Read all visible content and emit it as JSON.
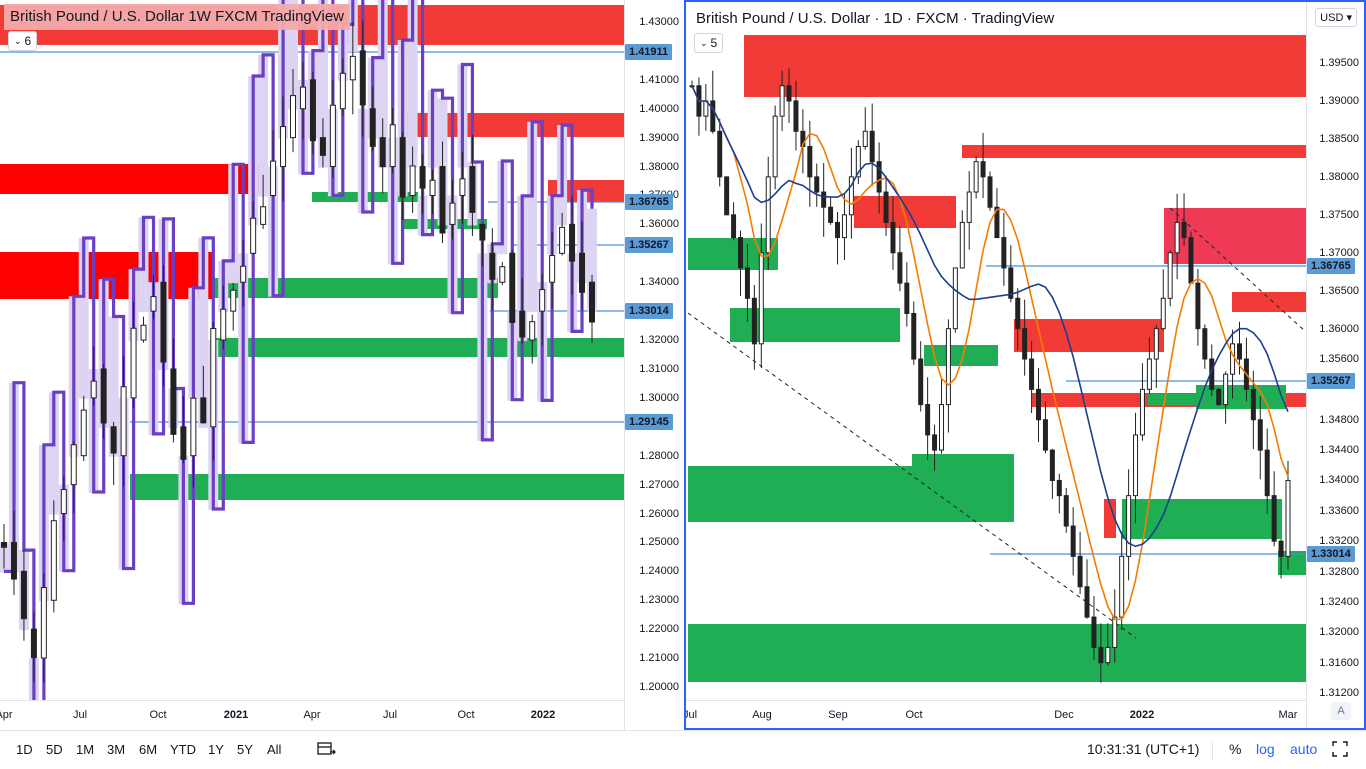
{
  "left": {
    "title": "British Pound / U.S. Dollar   1W   FXCM   TradingView",
    "legend_count": "6",
    "price_ticks": [
      "1.43000",
      "1.41000",
      "1.40000",
      "1.39000",
      "1.38000",
      "1.37000",
      "1.36000",
      "1.34000",
      "1.32000",
      "1.31000",
      "1.30000",
      "1.28000",
      "1.27000",
      "1.26000",
      "1.25000",
      "1.24000",
      "1.23000",
      "1.22000",
      "1.21000",
      "1.20000"
    ],
    "price_labels": [
      "1.41911",
      "1.36765",
      "1.35267",
      "1.33014",
      "1.29145"
    ],
    "time_labels": [
      "Apr",
      "Jul",
      "Oct",
      "2021",
      "Apr",
      "Jul",
      "Oct",
      "2022"
    ],
    "time_bold": [
      false,
      false,
      false,
      true,
      false,
      false,
      false,
      true
    ]
  },
  "right": {
    "title": "British Pound / U.S. Dollar · 1D · FXCM · TradingView",
    "legend_count": "5",
    "currency": "USD",
    "price_ticks": [
      "1.39500",
      "1.39000",
      "1.38500",
      "1.38000",
      "1.37500",
      "1.37000",
      "1.36500",
      "1.36000",
      "1.35600",
      "1.34800",
      "1.34400",
      "1.34000",
      "1.33600",
      "1.33200",
      "1.32800",
      "1.32400",
      "1.32000",
      "1.31600",
      "1.31200"
    ],
    "price_labels": [
      "1.36765",
      "1.35267",
      "1.33014"
    ],
    "time_labels": [
      "Jul",
      "Aug",
      "Sep",
      "Oct",
      "Dec",
      "2022",
      "Mar"
    ],
    "time_bold": [
      false,
      false,
      false,
      false,
      false,
      true,
      false
    ],
    "auto_scale_label": "A"
  },
  "toolbar": {
    "timeframes": [
      "1D",
      "5D",
      "1M",
      "3M",
      "6M",
      "YTD",
      "1Y",
      "5Y",
      "All"
    ],
    "clock": "10:31:31 (UTC+1)",
    "percent": "%",
    "log": "log",
    "auto": "auto"
  },
  "colors": {
    "supply": "#f23b36",
    "demand": "#1fae53",
    "line_blue": "#4a90d9",
    "accent": "#2962ff",
    "ma_orange": "#f57c00",
    "ma_navy": "#1a3f8f",
    "heikin": "#6a3fc4"
  }
}
